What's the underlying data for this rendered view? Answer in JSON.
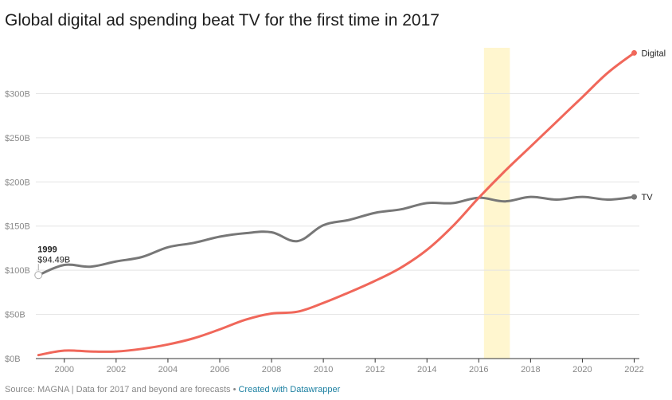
{
  "title": "Global digital ad spending beat TV for the first time in 2017",
  "footer": {
    "source": "Source: MAGNA | Data for 2017 and beyond are forecasts",
    "separator": " • ",
    "credit": "Created with Datawrapper"
  },
  "chart_data": {
    "type": "line",
    "title": "Global digital ad spending beat TV for the first time in 2017",
    "x": [
      1999,
      2000,
      2001,
      2002,
      2003,
      2004,
      2005,
      2006,
      2007,
      2008,
      2009,
      2010,
      2011,
      2012,
      2013,
      2014,
      2015,
      2016,
      2017,
      2018,
      2019,
      2020,
      2021,
      2022
    ],
    "series": [
      {
        "name": "TV",
        "color": "#777777",
        "values": [
          94.49,
          106,
          104,
          110,
          115,
          126,
          131,
          138,
          142,
          143,
          133,
          151,
          157,
          165,
          169,
          176,
          176,
          182,
          178,
          183,
          180,
          183,
          180,
          183
        ]
      },
      {
        "name": "Digital",
        "color": "#f0675a",
        "values": [
          4,
          9,
          8,
          8,
          11,
          16,
          23,
          33,
          44,
          51,
          53,
          63,
          75,
          88,
          103,
          123,
          150,
          182,
          212,
          240,
          268,
          296,
          324,
          346
        ]
      }
    ],
    "ylim": [
      0,
      350
    ],
    "xlim": [
      1998.9,
      2022.2
    ],
    "yticks": [
      0,
      50,
      100,
      150,
      200,
      250,
      300
    ],
    "ytick_labels": [
      "$0B",
      "$50B",
      "$100B",
      "$150B",
      "$200B",
      "$250B",
      "$300B"
    ],
    "xticks": [
      2000,
      2002,
      2004,
      2006,
      2008,
      2010,
      2012,
      2014,
      2016,
      2018,
      2020,
      2022
    ],
    "xtick_labels": [
      "2000",
      "2002",
      "2004",
      "2006",
      "2008",
      "2010",
      "2012",
      "2014",
      "2016",
      "2018",
      "2020",
      "2022"
    ],
    "highlight_range": [
      2016.2,
      2017.2
    ],
    "highlight_color": "#fff6cf",
    "grid": true,
    "annotation": {
      "year": "1999",
      "value": "$94.49B"
    },
    "legend": "inline labels at line ends"
  }
}
